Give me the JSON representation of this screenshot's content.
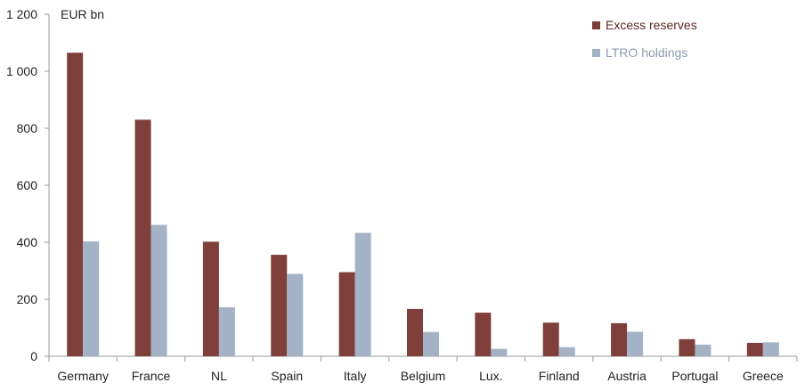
{
  "chart_data": {
    "type": "bar",
    "unit_label": "EUR bn",
    "categories": [
      "Germany",
      "France",
      "NL",
      "Spain",
      "Italy",
      "Belgium",
      "Lux.",
      "Finland",
      "Austria",
      "Portugal",
      "Greece"
    ],
    "series": [
      {
        "name": "Excess reserves",
        "color": "#7f3f3a",
        "values": [
          1065,
          830,
          402,
          356,
          295,
          166,
          153,
          118,
          116,
          60,
          47
        ]
      },
      {
        "name": "LTRO holdings",
        "color": "#a3b3c5",
        "values": [
          403,
          461,
          172,
          289,
          433,
          85,
          26,
          32,
          86,
          41,
          49
        ]
      }
    ],
    "ylim": [
      0,
      1200
    ],
    "yticks": [
      0,
      200,
      400,
      600,
      800,
      1000,
      1200
    ],
    "ytick_labels": [
      "0",
      "200",
      "400",
      "600",
      "800",
      "1 000",
      "1 200"
    ],
    "grid": false,
    "legend_position": "top-right"
  }
}
